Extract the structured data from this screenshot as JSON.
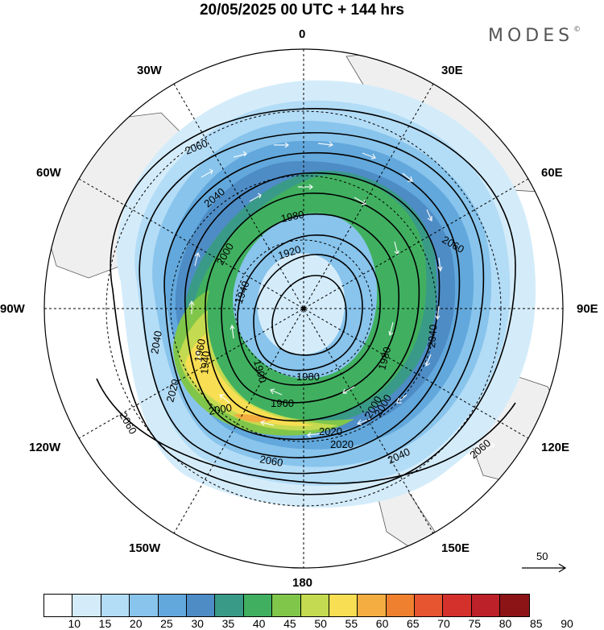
{
  "header": {
    "title": "20/05/2025  00 UTC  + 144 hrs",
    "brand": "MODES",
    "brand_mark": "©"
  },
  "longitude_labels": {
    "n": "0",
    "nw30": "30W",
    "ne30": "30E",
    "w60": "60W",
    "e60": "60E",
    "w90": "90W",
    "e90": "90E",
    "w120": "120W",
    "e120": "120E",
    "w150": "150W",
    "e150": "150E",
    "s": "180"
  },
  "contour_labels": [
    "2060",
    "2040",
    "1980",
    "2000",
    "1920",
    "1940",
    "1900",
    "1960",
    "2020",
    "2060",
    "2040",
    "2000",
    "1980",
    "1960",
    "2000",
    "2020",
    "2040",
    "2060",
    "2060",
    "1940",
    "1980",
    "2020",
    "2040",
    "2000",
    "2060"
  ],
  "reference_vector": {
    "value": "50"
  },
  "colorbar": {
    "ticks": [
      "10",
      "15",
      "20",
      "25",
      "30",
      "35",
      "40",
      "45",
      "50",
      "55",
      "60",
      "65",
      "70",
      "75",
      "80",
      "85",
      "90"
    ],
    "colors": [
      "#ffffff",
      "#d4ecfa",
      "#b3dcf6",
      "#88c4ec",
      "#62a8dc",
      "#4e8cc6",
      "#3a9a88",
      "#40b060",
      "#80c64a",
      "#c4da50",
      "#f7de52",
      "#f3ad40",
      "#ef8030",
      "#e65430",
      "#d4302c",
      "#bc2028",
      "#8c1416"
    ]
  },
  "colors": {
    "land": "#efefef",
    "jet_core": "#f7de52",
    "contour": "#000000",
    "wind_arrow": "#ffffff"
  }
}
